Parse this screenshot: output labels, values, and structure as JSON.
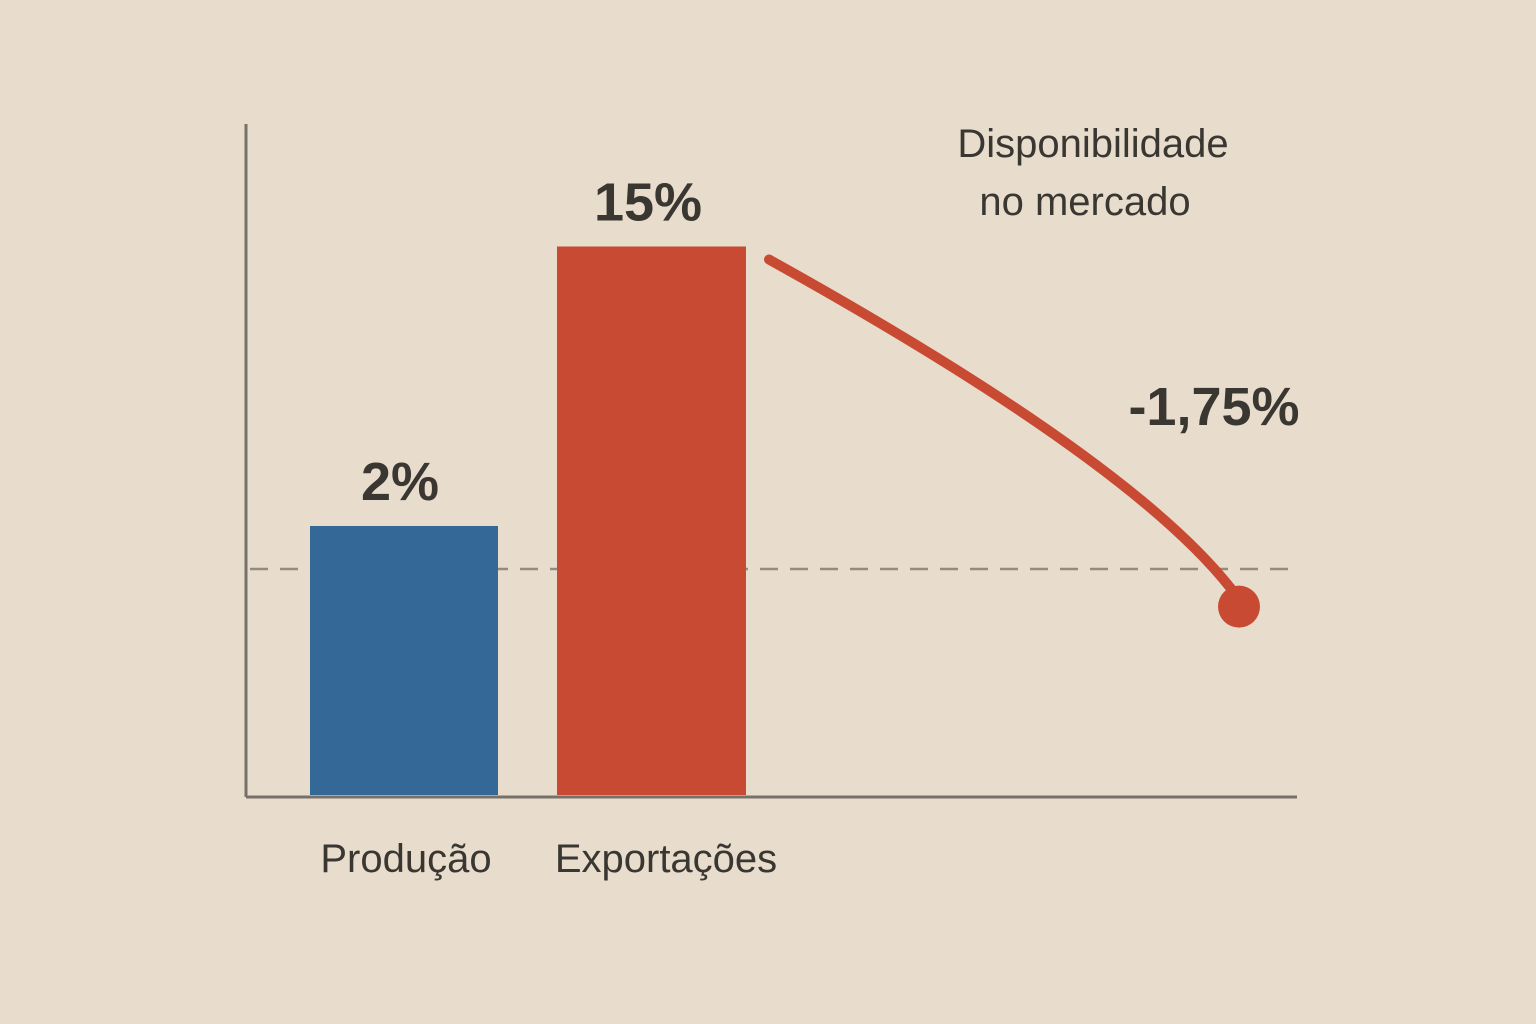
{
  "chart_data": {
    "type": "bar",
    "categories": [
      "Produção",
      "Exportações"
    ],
    "values": [
      2,
      15
    ],
    "value_labels": [
      "2%",
      "15%"
    ],
    "colors": [
      "#346896",
      "#c94a33"
    ],
    "baseline": 0,
    "grid": false,
    "trend": {
      "label": [
        "Disponibilidade",
        "no mercado"
      ],
      "value": -1.75,
      "value_label": "-1,75%",
      "color": "#c94a33"
    }
  }
}
